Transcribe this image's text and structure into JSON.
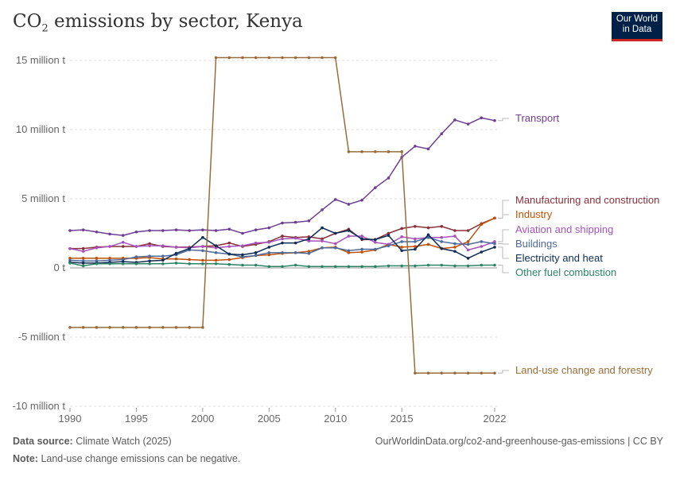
{
  "header": {
    "title_prefix": "CO",
    "title_sub": "2",
    "title_suffix": " emissions by sector, Kenya",
    "logo_line1": "Our World",
    "logo_line2": "in Data"
  },
  "footer": {
    "source_label": "Data source:",
    "source": "Climate Watch (2025)",
    "url": "OurWorldinData.org/co2-and-greenhouse-gas-emissions | CC BY",
    "note_label": "Note:",
    "note": "Land-use change emissions can be negative."
  },
  "chart_data": {
    "type": "line",
    "title": "CO2 emissions by sector, Kenya",
    "xlabel": "",
    "ylabel": "",
    "xlim": [
      1990,
      2022
    ],
    "ylim": [
      -10000000,
      15000000
    ],
    "yticks": [
      {
        "v": -10000000,
        "label": "-10 million t"
      },
      {
        "v": -5000000,
        "label": "-5 million t"
      },
      {
        "v": 0,
        "label": "0 t"
      },
      {
        "v": 5000000,
        "label": "5 million t"
      },
      {
        "v": 10000000,
        "label": "10 million t"
      },
      {
        "v": 15000000,
        "label": "15 million t"
      }
    ],
    "xticks": [
      {
        "v": 1990,
        "label": "1990"
      },
      {
        "v": 1995,
        "label": "1995"
      },
      {
        "v": 2000,
        "label": "2000"
      },
      {
        "v": 2005,
        "label": "2005"
      },
      {
        "v": 2010,
        "label": "2010"
      },
      {
        "v": 2015,
        "label": "2015"
      },
      {
        "v": 2022,
        "label": "2022"
      }
    ],
    "grid": true,
    "legend": "right-end-labels",
    "x": [
      1990,
      1991,
      1992,
      1993,
      1994,
      1995,
      1996,
      1997,
      1998,
      1999,
      2000,
      2001,
      2002,
      2003,
      2004,
      2005,
      2006,
      2007,
      2008,
      2009,
      2010,
      2011,
      2012,
      2013,
      2014,
      2015,
      2016,
      2017,
      2018,
      2019,
      2020,
      2021,
      2022
    ],
    "unit": "million t",
    "series": [
      {
        "name": "Transport",
        "color": "#6d3e91",
        "values": [
          2.7,
          2.75,
          2.6,
          2.45,
          2.35,
          2.6,
          2.7,
          2.7,
          2.75,
          2.7,
          2.75,
          2.7,
          2.8,
          2.5,
          2.75,
          2.9,
          3.25,
          3.3,
          3.4,
          4.2,
          4.95,
          4.6,
          4.9,
          5.8,
          6.5,
          8.0,
          8.8,
          8.6,
          9.7,
          10.7,
          10.4,
          10.85,
          10.65
        ]
      },
      {
        "name": "Manufacturing and construction",
        "color": "#883039",
        "values": [
          1.4,
          1.4,
          1.5,
          1.55,
          1.55,
          1.55,
          1.75,
          1.55,
          1.5,
          1.5,
          1.55,
          1.6,
          1.8,
          1.55,
          1.7,
          1.9,
          2.3,
          2.2,
          2.25,
          2.1,
          2.5,
          2.8,
          2.05,
          2.05,
          2.5,
          2.85,
          3.0,
          2.9,
          3.0,
          2.7,
          2.7,
          3.2,
          3.6
        ]
      },
      {
        "name": "Industry",
        "color": "#c15005",
        "values": [
          0.7,
          0.7,
          0.7,
          0.7,
          0.7,
          0.7,
          0.75,
          0.65,
          0.65,
          0.6,
          0.55,
          0.55,
          0.6,
          0.75,
          0.9,
          0.95,
          1.05,
          1.1,
          1.2,
          1.45,
          1.5,
          1.1,
          1.15,
          1.3,
          1.7,
          1.5,
          1.55,
          1.7,
          1.4,
          1.5,
          1.9,
          3.15,
          3.6
        ]
      },
      {
        "name": "Aviation and shipping",
        "color": "#a652ba",
        "values": [
          1.4,
          1.2,
          1.45,
          1.55,
          1.85,
          1.55,
          1.6,
          1.6,
          1.5,
          1.45,
          1.55,
          1.45,
          1.55,
          1.6,
          1.8,
          1.85,
          2.1,
          2.15,
          1.95,
          1.95,
          1.75,
          2.3,
          2.3,
          1.85,
          1.7,
          2.25,
          2.1,
          2.2,
          2.2,
          2.3,
          1.3,
          1.55,
          1.9
        ]
      },
      {
        "name": "Buildings",
        "color": "#4c6a9c",
        "values": [
          0.55,
          0.5,
          0.5,
          0.55,
          0.6,
          0.8,
          0.85,
          0.85,
          0.95,
          1.3,
          1.25,
          1.1,
          1.0,
          0.8,
          0.9,
          1.1,
          1.1,
          1.1,
          1.05,
          1.45,
          1.45,
          1.25,
          1.35,
          1.35,
          1.6,
          1.9,
          1.9,
          2.2,
          1.9,
          1.75,
          1.7,
          1.9,
          1.75
        ]
      },
      {
        "name": "Electricity and heat",
        "color": "#0f2d55",
        "values": [
          0.4,
          0.35,
          0.35,
          0.4,
          0.45,
          0.4,
          0.5,
          0.55,
          1.05,
          1.4,
          2.2,
          1.6,
          1.0,
          0.95,
          1.1,
          1.5,
          1.8,
          1.8,
          2.1,
          2.9,
          2.5,
          2.7,
          2.1,
          2.05,
          2.35,
          1.25,
          1.35,
          2.4,
          1.4,
          1.2,
          0.7,
          1.15,
          1.5
        ]
      },
      {
        "name": "Other fuel combustion",
        "color": "#2c8465",
        "values": [
          0.35,
          0.15,
          0.3,
          0.3,
          0.3,
          0.3,
          0.3,
          0.3,
          0.35,
          0.3,
          0.3,
          0.3,
          0.25,
          0.2,
          0.2,
          0.1,
          0.1,
          0.2,
          0.1,
          0.1,
          0.1,
          0.1,
          0.1,
          0.1,
          0.15,
          0.15,
          0.15,
          0.2,
          0.2,
          0.15,
          0.15,
          0.2,
          0.2
        ]
      },
      {
        "name": "Land-use change and forestry",
        "color": "#996d39",
        "values": [
          -4.3,
          -4.3,
          -4.3,
          -4.3,
          -4.3,
          -4.3,
          -4.3,
          -4.3,
          -4.3,
          -4.3,
          -4.3,
          15.2,
          15.2,
          15.2,
          15.2,
          15.2,
          15.2,
          15.2,
          15.2,
          15.2,
          15.2,
          8.4,
          8.4,
          8.4,
          8.4,
          8.4,
          -7.6,
          -7.6,
          -7.6,
          -7.6,
          -7.6,
          -7.6,
          -7.6
        ]
      }
    ]
  }
}
